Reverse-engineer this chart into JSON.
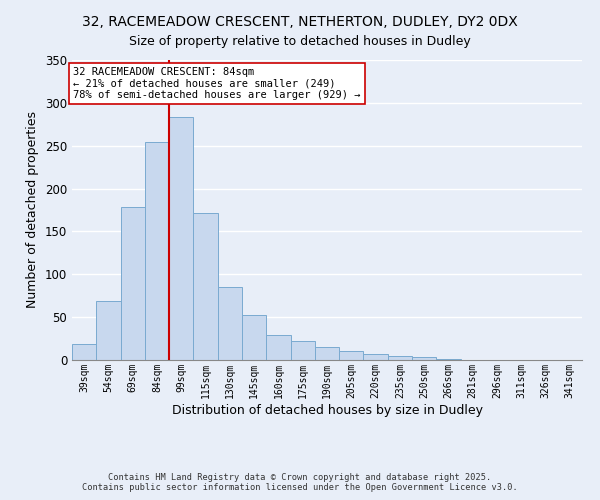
{
  "title_line1": "32, RACEMEADOW CRESCENT, NETHERTON, DUDLEY, DY2 0DX",
  "title_line2": "Size of property relative to detached houses in Dudley",
  "xlabel": "Distribution of detached houses by size in Dudley",
  "ylabel": "Number of detached properties",
  "bar_labels": [
    "39sqm",
    "54sqm",
    "69sqm",
    "84sqm",
    "99sqm",
    "115sqm",
    "130sqm",
    "145sqm",
    "160sqm",
    "175sqm",
    "190sqm",
    "205sqm",
    "220sqm",
    "235sqm",
    "250sqm",
    "266sqm",
    "281sqm",
    "296sqm",
    "311sqm",
    "326sqm",
    "341sqm"
  ],
  "bar_values": [
    19,
    69,
    178,
    254,
    283,
    172,
    85,
    52,
    29,
    22,
    15,
    10,
    7,
    5,
    4,
    1,
    0,
    0,
    0,
    0,
    0
  ],
  "bar_color": "#c8d8ee",
  "bar_edge_color": "#7aaad0",
  "vline_color": "#cc0000",
  "annotation_title": "32 RACEMEADOW CRESCENT: 84sqm",
  "annotation_line2": "← 21% of detached houses are smaller (249)",
  "annotation_line3": "78% of semi-detached houses are larger (929) →",
  "annotation_box_color": "#ffffff",
  "annotation_box_edge": "#cc0000",
  "ylim": [
    0,
    350
  ],
  "yticks": [
    0,
    50,
    100,
    150,
    200,
    250,
    300,
    350
  ],
  "footer_line1": "Contains HM Land Registry data © Crown copyright and database right 2025.",
  "footer_line2": "Contains public sector information licensed under the Open Government Licence v3.0.",
  "background_color": "#e8eef8",
  "grid_color": "#ffffff",
  "fig_width": 6.0,
  "fig_height": 5.0,
  "vline_bar_index": 3
}
